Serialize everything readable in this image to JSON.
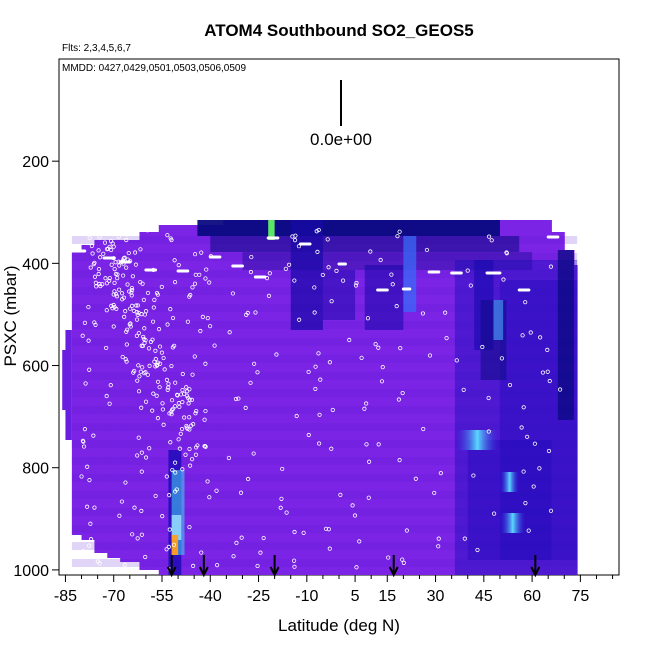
{
  "chart_data": {
    "type": "heatmap",
    "title": "ATOM4 Southbound SO2_GEOS5",
    "flights_label": "Flts: 2,3,4,5,6,7",
    "dates_label": "MMDD: 0427,0429,0501,0503,0506,0509",
    "scale_label": "0.0e+00",
    "xlabel": "Latitude (deg N)",
    "ylabel": "PSXC (mbar)",
    "xlim": [
      -87,
      87
    ],
    "ylim": [
      1010,
      0
    ],
    "x_ticks": [
      -85,
      -70,
      -55,
      -40,
      -25,
      -10,
      5,
      15,
      30,
      45,
      60,
      75
    ],
    "x_minor_ticks": [
      -80,
      -75,
      -65,
      -60,
      -50,
      -45,
      -35,
      -30,
      -20,
      -15,
      -5,
      0,
      10,
      20,
      25,
      35,
      40,
      50,
      55,
      65,
      70,
      80,
      85
    ],
    "y_ticks": [
      200,
      400,
      600,
      800,
      1000
    ],
    "arrow_latitudes": [
      -52,
      -42,
      -20,
      17,
      61
    ],
    "colors": {
      "background_field": "#7b24e6",
      "deep_blue": "#1a0ab8",
      "navy": "#0a0a80",
      "cyan": "#3fd6f0",
      "light_blue": "#9adcff",
      "orange": "#ff9d20",
      "green": "#66ff66"
    }
  }
}
